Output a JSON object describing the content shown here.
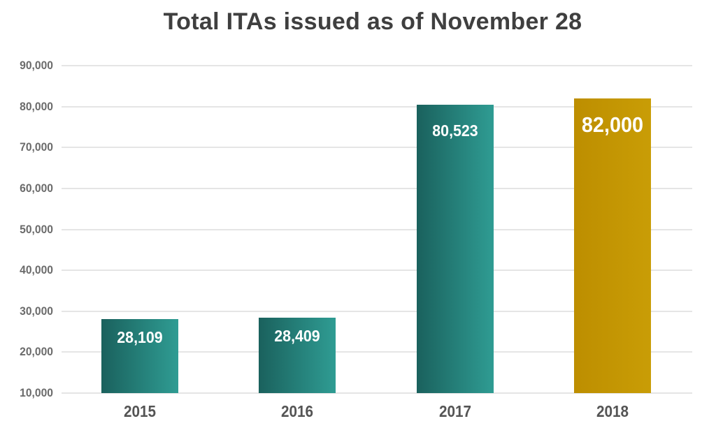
{
  "chart_data": {
    "type": "bar",
    "title": "Total ITAs issued as of November 28",
    "categories": [
      "2015",
      "2016",
      "2017",
      "2018"
    ],
    "values": [
      28109,
      28409,
      80523,
      82000
    ],
    "value_labels": [
      "28,109",
      "28,409",
      "80,523",
      "82,000"
    ],
    "xlabel": "",
    "ylabel": "",
    "ylim": [
      10000,
      90000
    ],
    "ytick_interval": 10000,
    "ytick_labels": [
      "10,000",
      "20,000",
      "30,000",
      "40,000",
      "50,000",
      "60,000",
      "70,000",
      "80,000",
      "90,000"
    ],
    "grid": true,
    "legend": false,
    "bar_styles": [
      "teal",
      "teal",
      "teal",
      "gold"
    ],
    "colors": {
      "teal_dark": "#1a615d",
      "teal_light": "#2f9c93",
      "gold_dark": "#bd8e00",
      "gold_light": "#c99d06",
      "title_text": "#3f3f3f",
      "ytick_text": "#6b6b6b",
      "xtick_text": "#545454",
      "value_text": "#ffffff",
      "gridline": "#e5e5e5",
      "background": "#ffffff"
    }
  }
}
